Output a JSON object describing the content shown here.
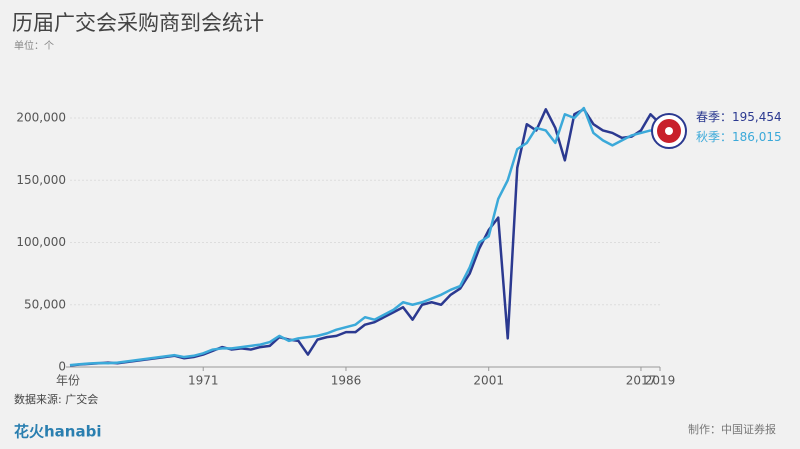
{
  "chart_data": {
    "type": "line",
    "title": "历届广交会采购商到会统计",
    "subtitle": "单位：个",
    "x_label": "年份",
    "x": [
      1957,
      1958,
      1959,
      1960,
      1961,
      1962,
      1963,
      1964,
      1965,
      1966,
      1967,
      1968,
      1969,
      1970,
      1971,
      1972,
      1973,
      1974,
      1975,
      1976,
      1977,
      1978,
      1979,
      1980,
      1981,
      1982,
      1983,
      1984,
      1985,
      1986,
      1987,
      1988,
      1989,
      1990,
      1991,
      1992,
      1993,
      1994,
      1995,
      1996,
      1997,
      1998,
      1999,
      2000,
      2001,
      2002,
      2003,
      2004,
      2005,
      2006,
      2007,
      2008,
      2009,
      2010,
      2011,
      2012,
      2013,
      2014,
      2015,
      2016,
      2017,
      2018,
      2019
    ],
    "xlim": [
      1957,
      2019
    ],
    "xticks": [
      1971,
      1986,
      2001,
      2017,
      2019
    ],
    "ylim": [
      0,
      200000
    ],
    "yticks": [
      0,
      {
        "value": 50000,
        "label": "50,000"
      },
      {
        "value": 100000,
        "label": "100,000"
      },
      {
        "value": 150000,
        "label": "150,000"
      },
      {
        "value": 200000,
        "label": "200,000"
      }
    ],
    "series": [
      {
        "name": "春季",
        "color": "#2b3990",
        "value_label": "：195,454",
        "values": [
          1200,
          2000,
          2500,
          3000,
          3500,
          3000,
          4000,
          5000,
          6000,
          7000,
          8000,
          9000,
          7000,
          8000,
          10000,
          13000,
          16000,
          14000,
          15000,
          14000,
          16000,
          17000,
          24000,
          22000,
          21000,
          10000,
          22000,
          24000,
          25000,
          28000,
          28000,
          34000,
          36000,
          40000,
          44000,
          48000,
          38000,
          50000,
          52000,
          50000,
          58000,
          63000,
          75000,
          95000,
          110000,
          120000,
          23000,
          160000,
          195000,
          190000,
          207000,
          192000,
          166000,
          203000,
          207000,
          195000,
          190000,
          188000,
          184000,
          185000,
          190000,
          203000,
          195454
        ]
      },
      {
        "name": "秋季",
        "color": "#3ba9d9",
        "value_label": "：186,015",
        "values": [
          1500,
          2200,
          2800,
          3200,
          3000,
          3500,
          4500,
          5500,
          6500,
          7500,
          8500,
          9500,
          8000,
          9000,
          11000,
          14000,
          15000,
          15000,
          16000,
          17000,
          18000,
          20000,
          25000,
          21000,
          23000,
          24000,
          25000,
          27000,
          30000,
          32000,
          34000,
          40000,
          38000,
          42000,
          46000,
          52000,
          50000,
          52000,
          55000,
          58000,
          62000,
          65000,
          80000,
          100000,
          105000,
          135000,
          150000,
          175000,
          180000,
          192000,
          190000,
          180000,
          203000,
          200000,
          208000,
          188000,
          182000,
          178000,
          182000,
          186000,
          188000,
          190000,
          186015
        ]
      }
    ],
    "source": "数据来源: 广交会",
    "credit": "制作：中国证券报",
    "logo": "花火hanabi"
  }
}
